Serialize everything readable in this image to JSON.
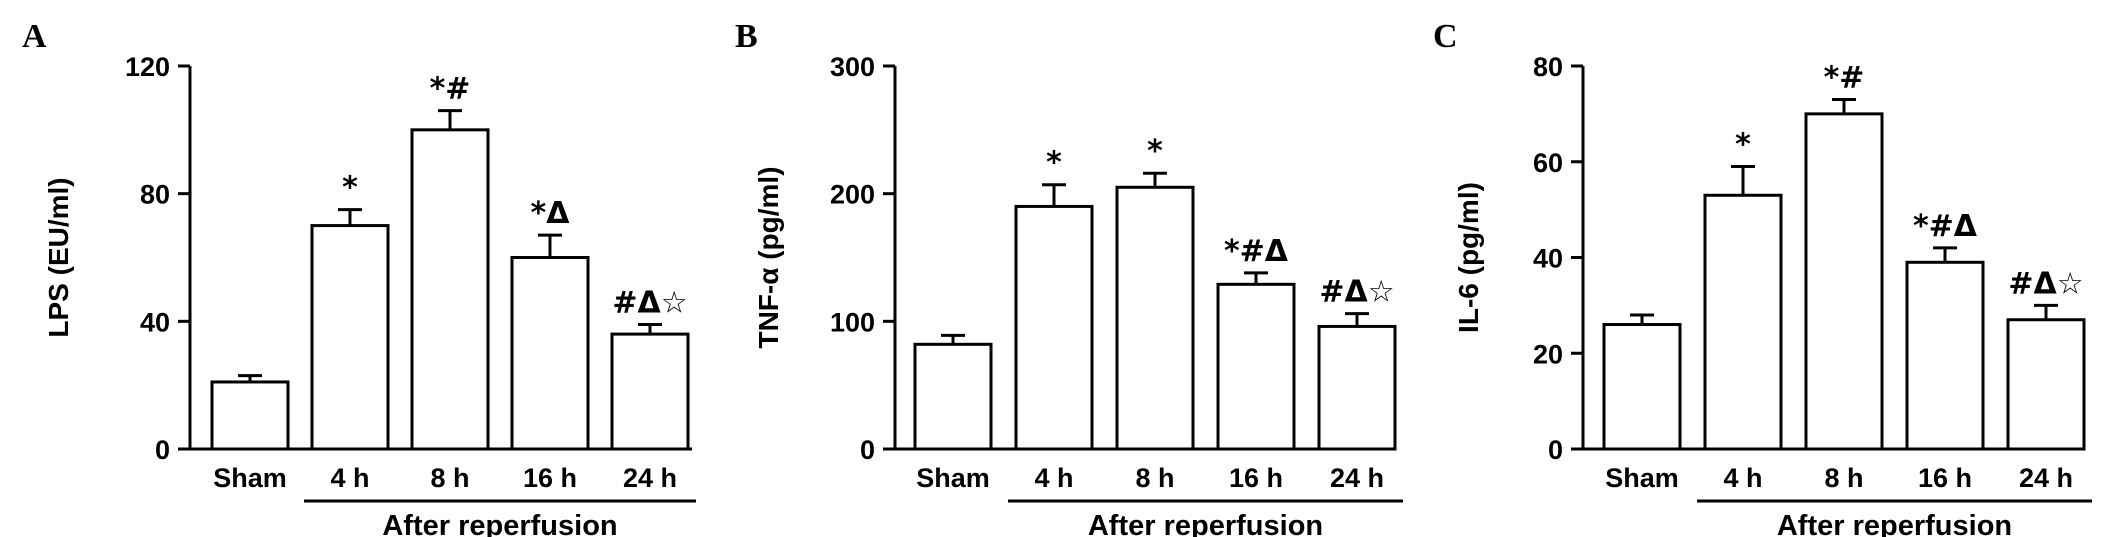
{
  "figure": {
    "group_label": "After reperfusion",
    "categories": [
      "Sham",
      "4 h",
      "8 h",
      "16 h",
      "24 h"
    ]
  },
  "chart_data": [
    {
      "type": "bar",
      "panel": "A",
      "ylabel": "LPS (EU/ml)",
      "ylim": [
        0,
        120
      ],
      "yticks": [
        0,
        40,
        80,
        120
      ],
      "categories": [
        "Sham",
        "4 h",
        "8 h",
        "16 h",
        "24 h"
      ],
      "values": [
        21,
        70,
        100,
        60,
        36
      ],
      "errors": [
        2,
        5,
        6,
        7,
        3
      ],
      "annotations": [
        "",
        "*",
        "*#",
        "*Δ",
        "#Δ☆"
      ],
      "group_label": "After reperfusion"
    },
    {
      "type": "bar",
      "panel": "B",
      "ylabel": "TNF-α (pg/ml)",
      "ylim": [
        0,
        300
      ],
      "yticks": [
        0,
        100,
        200,
        300
      ],
      "categories": [
        "Sham",
        "4 h",
        "8 h",
        "16 h",
        "24 h"
      ],
      "values": [
        82,
        190,
        205,
        129,
        96
      ],
      "errors": [
        7,
        17,
        11,
        9,
        10
      ],
      "annotations": [
        "",
        "*",
        "*",
        "*#Δ",
        "#Δ☆"
      ],
      "group_label": "After reperfusion"
    },
    {
      "type": "bar",
      "panel": "C",
      "ylabel": "IL-6 (pg/ml)",
      "ylim": [
        0,
        80
      ],
      "yticks": [
        0,
        20,
        40,
        60,
        80
      ],
      "categories": [
        "Sham",
        "4 h",
        "8 h",
        "16 h",
        "24 h"
      ],
      "values": [
        26,
        53,
        70,
        39,
        27
      ],
      "errors": [
        2,
        6,
        3,
        3,
        3
      ],
      "annotations": [
        "",
        "*",
        "*#",
        "*#Δ",
        "#Δ☆"
      ],
      "group_label": "After reperfusion"
    }
  ]
}
